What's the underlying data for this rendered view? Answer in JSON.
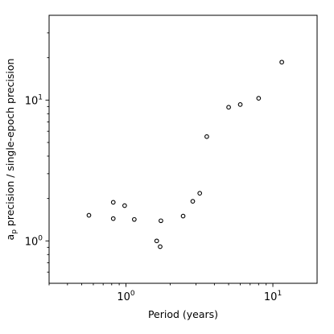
{
  "chart_data": {
    "type": "scatter",
    "xlabel": "Period (years)",
    "ylabel_main": "a",
    "ylabel_subscript": "p",
    "ylabel_rest": " precision / single-epoch precision",
    "xscale": "log",
    "yscale": "log",
    "xlim": [
      0.3,
      20
    ],
    "ylim": [
      0.5,
      40
    ],
    "x_ticks": [
      {
        "value": 1,
        "base": "10",
        "exp": "0"
      },
      {
        "value": 10,
        "base": "10",
        "exp": "1"
      }
    ],
    "y_ticks": [
      {
        "value": 1,
        "base": "10",
        "exp": "0"
      },
      {
        "value": 10,
        "base": "10",
        "exp": "1"
      }
    ],
    "marker": "open-circle",
    "marker_color": "#000000",
    "grid": false,
    "points": [
      {
        "x": 0.56,
        "y": 1.52
      },
      {
        "x": 0.82,
        "y": 1.88
      },
      {
        "x": 0.82,
        "y": 1.44
      },
      {
        "x": 0.98,
        "y": 1.78
      },
      {
        "x": 1.14,
        "y": 1.42
      },
      {
        "x": 1.62,
        "y": 1.0
      },
      {
        "x": 1.71,
        "y": 0.91
      },
      {
        "x": 1.73,
        "y": 1.39
      },
      {
        "x": 2.45,
        "y": 1.5
      },
      {
        "x": 2.85,
        "y": 1.91
      },
      {
        "x": 3.18,
        "y": 2.18
      },
      {
        "x": 3.55,
        "y": 5.5
      },
      {
        "x": 5.0,
        "y": 8.9
      },
      {
        "x": 6.0,
        "y": 9.3
      },
      {
        "x": 8.0,
        "y": 10.3
      },
      {
        "x": 11.5,
        "y": 18.6
      }
    ]
  }
}
